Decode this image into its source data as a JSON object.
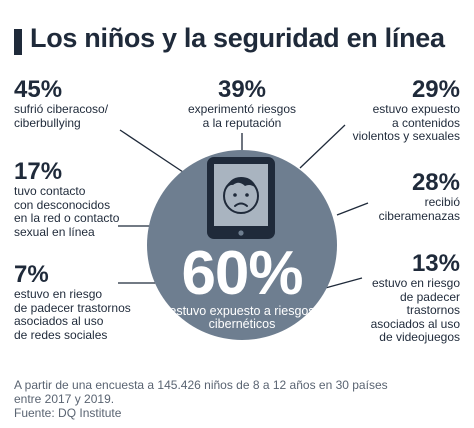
{
  "title": "Los niños y la seguridad en línea",
  "center": {
    "pct": "60%",
    "label": "estuvo expuesto a riesgos cibernéticos"
  },
  "stats": {
    "s1": {
      "pct": "45%",
      "label1": "sufrió ciberacoso/",
      "label2": "ciberbullying"
    },
    "s2": {
      "pct": "39%",
      "label1": "experimentó riesgos",
      "label2": "a la reputación"
    },
    "s3": {
      "pct": "29%",
      "label1": "estuvo expuesto",
      "label2": "a contenidos",
      "label3": "violentos y sexuales"
    },
    "s4": {
      "pct": "17%",
      "label1": "tuvo contacto",
      "label2": "con desconocidos",
      "label3": "en la red o contacto",
      "label4": "sexual en línea"
    },
    "s5": {
      "pct": "28%",
      "label1": "recibió",
      "label2": "ciberamenazas"
    },
    "s6": {
      "pct": "7%",
      "label1": "estuvo en riesgo",
      "label2": "de padecer trastornos",
      "label3": "asociados al uso",
      "label4": "de redes sociales"
    },
    "s7": {
      "pct": "13%",
      "label1": "estuvo en riesgo",
      "label2": "de padecer",
      "label3": "trastornos",
      "label4": "asociados al uso",
      "label5": "de videojuegos"
    }
  },
  "footer": {
    "line1": "A partir de una encuesta a 145.426 niños de 8 a 12 años en 30 países",
    "line2": "entre 2017 y 2019.",
    "source": "Fuente: DQ Institute"
  },
  "colors": {
    "dark": "#1f2a3a",
    "circle": "#6e7e90",
    "icon": "#1f2a3a"
  },
  "icons": [
    "tablet-icon",
    "sad-child-face-icon"
  ]
}
